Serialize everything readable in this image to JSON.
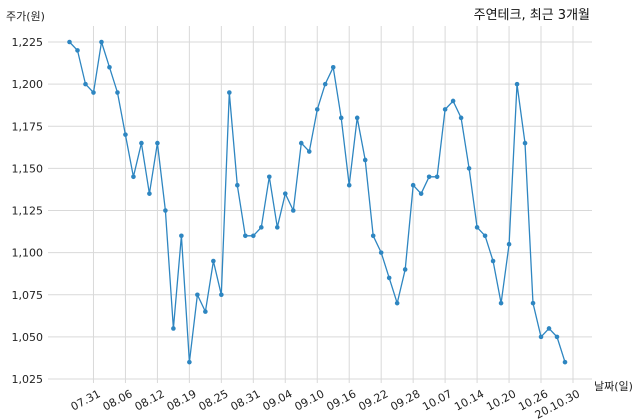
{
  "chart_data": {
    "type": "line",
    "title": "주연테크, 최근 3개월",
    "ylabel": "주가(원)",
    "xlabel": "날짜(일)",
    "ylim": [
      1025,
      1237.5
    ],
    "yticks": [
      1025,
      1050,
      1075,
      1100,
      1125,
      1150,
      1175,
      1200,
      1225
    ],
    "ytick_labels": [
      "1,025",
      "1,050",
      "1,075",
      "1,100",
      "1,125",
      "1,150",
      "1,175",
      "1,200",
      "1,225"
    ],
    "xtick_labels": [
      "07.31",
      "08.06",
      "08.12",
      "08.19",
      "08.25",
      "08.31",
      "09.04",
      "09.10",
      "09.16",
      "09.22",
      "09.28",
      "10.07",
      "10.14",
      "10.20",
      "10.26",
      "20.10.30"
    ],
    "xtick_indices": [
      3,
      7,
      11,
      15,
      19,
      23,
      27,
      31,
      35,
      39,
      43,
      47,
      51,
      55,
      59,
      63
    ],
    "grid": true,
    "line_color": "#2e86c1",
    "series": [
      {
        "values": [
          1225,
          1220,
          1200,
          1195,
          1225,
          1210,
          1195,
          1170,
          1145,
          1165,
          1135,
          1165,
          1125,
          1055,
          1110,
          1035,
          1075,
          1065,
          1095,
          1075,
          1195,
          1140,
          1110,
          1110,
          1115,
          1145,
          1115,
          1135,
          1125,
          1165,
          1160,
          1185,
          1200,
          1210,
          1180,
          1140,
          1180,
          1155,
          1110,
          1100,
          1085,
          1070,
          1090,
          1140,
          1135,
          1145,
          1145,
          1185,
          1190,
          1180,
          1150,
          1115,
          1110,
          1095,
          1070,
          1105,
          1200,
          1165,
          1070,
          1050,
          1055,
          1050,
          1035
        ]
      }
    ]
  }
}
